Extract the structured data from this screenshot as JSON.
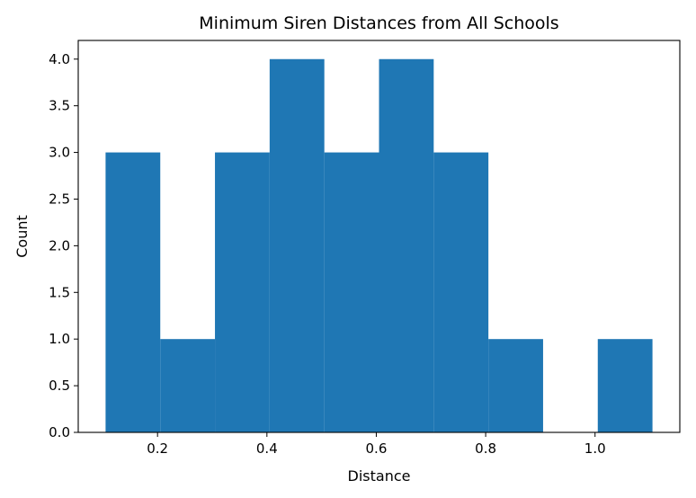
{
  "chart_data": {
    "type": "bar",
    "subtype": "histogram",
    "title": "Minimum Siren Distances from All Schools",
    "xlabel": "Distance",
    "ylabel": "Count",
    "bins": [
      {
        "start": 0.105,
        "end": 0.205,
        "count": 3
      },
      {
        "start": 0.205,
        "end": 0.305,
        "count": 1
      },
      {
        "start": 0.305,
        "end": 0.405,
        "count": 3
      },
      {
        "start": 0.405,
        "end": 0.505,
        "count": 4
      },
      {
        "start": 0.505,
        "end": 0.605,
        "count": 3
      },
      {
        "start": 0.605,
        "end": 0.705,
        "count": 4
      },
      {
        "start": 0.705,
        "end": 0.805,
        "count": 3
      },
      {
        "start": 0.805,
        "end": 0.905,
        "count": 1
      },
      {
        "start": 0.905,
        "end": 1.005,
        "count": 0
      },
      {
        "start": 1.005,
        "end": 1.105,
        "count": 1
      }
    ],
    "xlim": [
      0.055,
      1.155
    ],
    "ylim": [
      0,
      4.2
    ],
    "xticks": [
      0.2,
      0.4,
      0.6,
      0.8,
      1.0
    ],
    "xtick_labels": [
      "0.2",
      "0.4",
      "0.6",
      "0.8",
      "1.0"
    ],
    "yticks": [
      0,
      0.5,
      1,
      1.5,
      2,
      2.5,
      3,
      3.5,
      4
    ],
    "ytick_labels": [
      "0.0",
      "0.5",
      "1.0",
      "1.5",
      "2.0",
      "2.5",
      "3.0",
      "3.5",
      "4.0"
    ],
    "bar_color": "#1f77b4",
    "grid": false
  }
}
